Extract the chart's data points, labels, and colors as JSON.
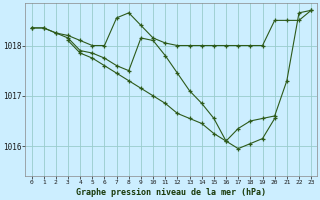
{
  "title": "Graphe pression niveau de la mer (hPa)",
  "background_color": "#cceeff",
  "plot_bg_color": "#cceeff",
  "line_color": "#2d5a1a",
  "grid_color": "#99cccc",
  "ylim": [
    1015.4,
    1018.85
  ],
  "xlim": [
    -0.5,
    23.5
  ],
  "yticks": [
    1016,
    1017,
    1018
  ],
  "xticks": [
    0,
    1,
    2,
    3,
    4,
    5,
    6,
    7,
    8,
    9,
    10,
    11,
    12,
    13,
    14,
    15,
    16,
    17,
    18,
    19,
    20,
    21,
    22,
    23
  ],
  "series": [
    {
      "x": [
        0,
        1,
        2,
        3,
        4,
        5,
        6,
        7,
        8,
        9,
        10,
        11,
        12,
        13,
        14,
        15,
        16,
        17,
        18,
        19,
        20,
        21,
        22,
        23
      ],
      "y": [
        1018.35,
        1018.35,
        1018.25,
        1018.2,
        1018.1,
        1018.0,
        1018.0,
        1018.55,
        1018.65,
        1018.4,
        1018.15,
        1018.05,
        1018.0,
        1018.0,
        1018.0,
        1018.0,
        1018.0,
        1018.0,
        1018.0,
        1018.0,
        1018.5,
        1018.5,
        1018.5,
        1018.7
      ]
    },
    {
      "x": [
        0,
        1,
        2,
        3,
        4,
        5,
        6,
        7,
        8,
        9,
        10,
        11,
        12,
        13,
        14,
        15,
        16,
        17,
        18,
        19,
        20,
        21,
        22,
        23
      ],
      "y": [
        1018.35,
        1018.35,
        1018.25,
        1018.15,
        1017.9,
        1017.85,
        1017.75,
        1017.6,
        1017.5,
        1018.15,
        1018.1,
        1017.8,
        1017.45,
        1017.1,
        1016.85,
        1016.55,
        1016.1,
        1016.35,
        1016.5,
        1016.55,
        1016.6,
        1017.3,
        1018.65,
        1018.7
      ]
    },
    {
      "x": [
        3,
        4,
        5,
        6,
        7,
        8,
        9,
        10,
        11,
        12,
        13,
        14,
        15,
        16,
        17,
        18,
        19,
        20
      ],
      "y": [
        1018.1,
        1017.85,
        1017.75,
        1017.6,
        1017.45,
        1017.3,
        1017.15,
        1017.0,
        1016.85,
        1016.65,
        1016.55,
        1016.45,
        1016.25,
        1016.1,
        1015.95,
        1016.05,
        1016.15,
        1016.55
      ]
    }
  ]
}
